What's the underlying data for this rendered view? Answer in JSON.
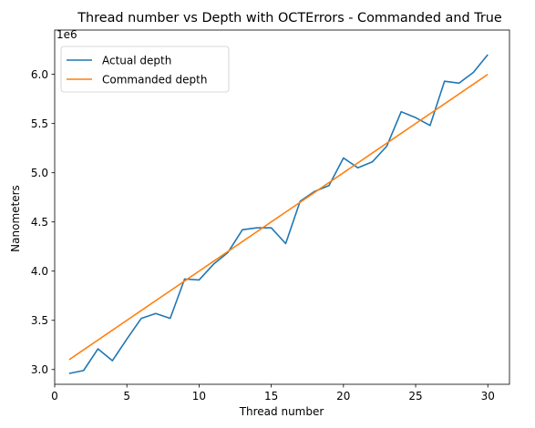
{
  "chart_data": {
    "type": "line",
    "title": "Thread number vs Depth with OCTErrors - Commanded and True",
    "xlabel": "Thread number",
    "ylabel": "Nanometers",
    "offset_label": "1e6",
    "xlim": [
      0,
      31.5
    ],
    "ylim": [
      2.85,
      6.45
    ],
    "x_ticks": [
      0,
      5,
      10,
      15,
      20,
      25,
      30
    ],
    "x_tick_labels": [
      "0",
      "5",
      "10",
      "15",
      "20",
      "25",
      "30"
    ],
    "y_ticks": [
      3.0,
      3.5,
      4.0,
      4.5,
      5.0,
      5.5,
      6.0
    ],
    "y_tick_labels": [
      "3.0",
      "3.5",
      "4.0",
      "4.5",
      "5.0",
      "5.5",
      "6.0"
    ],
    "grid": false,
    "legend_position": "upper left",
    "x": [
      1,
      2,
      3,
      4,
      5,
      6,
      7,
      8,
      9,
      10,
      11,
      12,
      13,
      14,
      15,
      16,
      17,
      18,
      19,
      20,
      21,
      22,
      23,
      24,
      25,
      26,
      27,
      28,
      29,
      30
    ],
    "series": [
      {
        "name": "Actual depth",
        "color": "#1f77b4",
        "values": [
          2.96,
          2.99,
          3.21,
          3.09,
          3.31,
          3.52,
          3.57,
          3.52,
          3.92,
          3.91,
          4.07,
          4.19,
          4.42,
          4.44,
          4.44,
          4.28,
          4.71,
          4.81,
          4.87,
          5.15,
          5.05,
          5.11,
          5.27,
          5.62,
          5.56,
          5.48,
          5.93,
          5.91,
          6.02,
          6.2
        ]
      },
      {
        "name": "Commanded depth",
        "color": "#ff7f0e",
        "values": [
          3.1,
          3.2,
          3.3,
          3.4,
          3.5,
          3.6,
          3.7,
          3.8,
          3.9,
          4.0,
          4.1,
          4.2,
          4.3,
          4.4,
          4.5,
          4.6,
          4.7,
          4.8,
          4.9,
          5.0,
          5.1,
          5.2,
          5.3,
          5.4,
          5.5,
          5.6,
          5.7,
          5.8,
          5.9,
          6.0
        ]
      }
    ]
  }
}
